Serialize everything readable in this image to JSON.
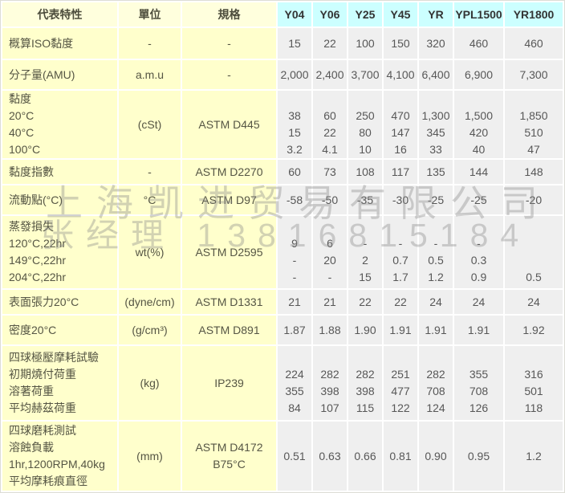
{
  "watermark": {
    "line1": "上海凯进贸易有限公司",
    "line2": "张经理  13816815184"
  },
  "colors": {
    "header_label_bg": "#ffffdd",
    "header_label_text": "#4c4c3c",
    "header_product_bg": "#ccffff",
    "header_product_text": "#333333",
    "label_bg": "#ffffcc",
    "label_text": "#555544",
    "value_bg": "#efefef",
    "value_text": "#575757",
    "watermark_color": "rgba(136,136,136,0.38)"
  },
  "table": {
    "columns": [
      {
        "label": "代表特性"
      },
      {
        "label": "單位"
      },
      {
        "label": "規格"
      },
      {
        "label": "Y04"
      },
      {
        "label": "Y06"
      },
      {
        "label": "Y25"
      },
      {
        "label": "Y45"
      },
      {
        "label": "YR"
      },
      {
        "label": "YPL1500"
      },
      {
        "label": "YR1800"
      }
    ],
    "rows": [
      {
        "feature": "概算ISO黏度",
        "unit": "-",
        "spec": "-",
        "values": [
          "15",
          "22",
          "100",
          "150",
          "320",
          "460",
          "460"
        ]
      },
      {
        "feature": "分子量(AMU)",
        "unit": "a.m.u",
        "spec": "-",
        "values": [
          "2,000",
          "2,400",
          "3,700",
          "4,100",
          "6,400",
          "6,900",
          "7,300"
        ]
      },
      {
        "feature": "黏度\n20°C\n40°C\n100°C",
        "unit": "(cSt)",
        "spec": "ASTM D445",
        "values": [
          "\n38\n15\n3.2",
          "\n60\n22\n4.1",
          "\n250\n80\n10",
          "\n470\n147\n16",
          "\n1,300\n345\n33",
          "\n1,500\n420\n40",
          "\n1,850\n510\n47"
        ]
      },
      {
        "feature": "黏度指數",
        "unit": "-",
        "spec": "ASTM D2270",
        "values": [
          "60",
          "73",
          "108",
          "117",
          "135",
          "144",
          "148"
        ]
      },
      {
        "feature": "流動點(°C)",
        "unit": "°C",
        "spec": "ASTM D97",
        "values": [
          "-58",
          "-50",
          "-35",
          "-30",
          "-25",
          "-25",
          "-20"
        ]
      },
      {
        "feature": "蒸發損失\n120°C,22hr\n149°C,22hr\n204°C,22hr",
        "unit": "wt(%)",
        "spec": "ASTM D2595",
        "values": [
          "\n9\n-\n-",
          "\n6\n20\n-",
          "\n-\n2\n15",
          "\n-\n0.7\n1.7",
          "\n-\n0.5\n1.2",
          "\n-\n0.3\n0.9",
          "\n\n\n0.5"
        ]
      },
      {
        "feature": "表面張力20°C",
        "unit": "(dyne/cm)",
        "spec": "ASTM D1331",
        "values": [
          "21",
          "21",
          "22",
          "22",
          "24",
          "24",
          "24"
        ]
      },
      {
        "feature": "密度20°C",
        "unit": "(g/cm³)",
        "spec": "ASTM D891",
        "values": [
          "1.87",
          "1.88",
          "1.90",
          "1.91",
          "1.91",
          "1.91",
          "1.92"
        ]
      },
      {
        "feature": "四球極壓摩耗試驗\n初期燒付荷重\n溶著荷重\n平均赫茲荷重",
        "unit": "(kg)",
        "spec": "IP239",
        "values": [
          "\n224\n355\n84",
          "\n282\n398\n107",
          "\n282\n398\n115",
          "\n251\n477\n122",
          "\n282\n708\n124",
          "\n355\n708\n126",
          "\n316\n501\n118"
        ]
      },
      {
        "feature": "四球磨耗測試\n溶蝕負載\n1hr,1200RPM,40kg\n平均摩耗痕直徑",
        "unit": "(mm)",
        "spec": "ASTM D4172\nB75°C",
        "values": [
          "0.51",
          "0.63",
          "0.66",
          "0.81",
          "0.90",
          "0.95",
          "1.2"
        ]
      }
    ]
  }
}
